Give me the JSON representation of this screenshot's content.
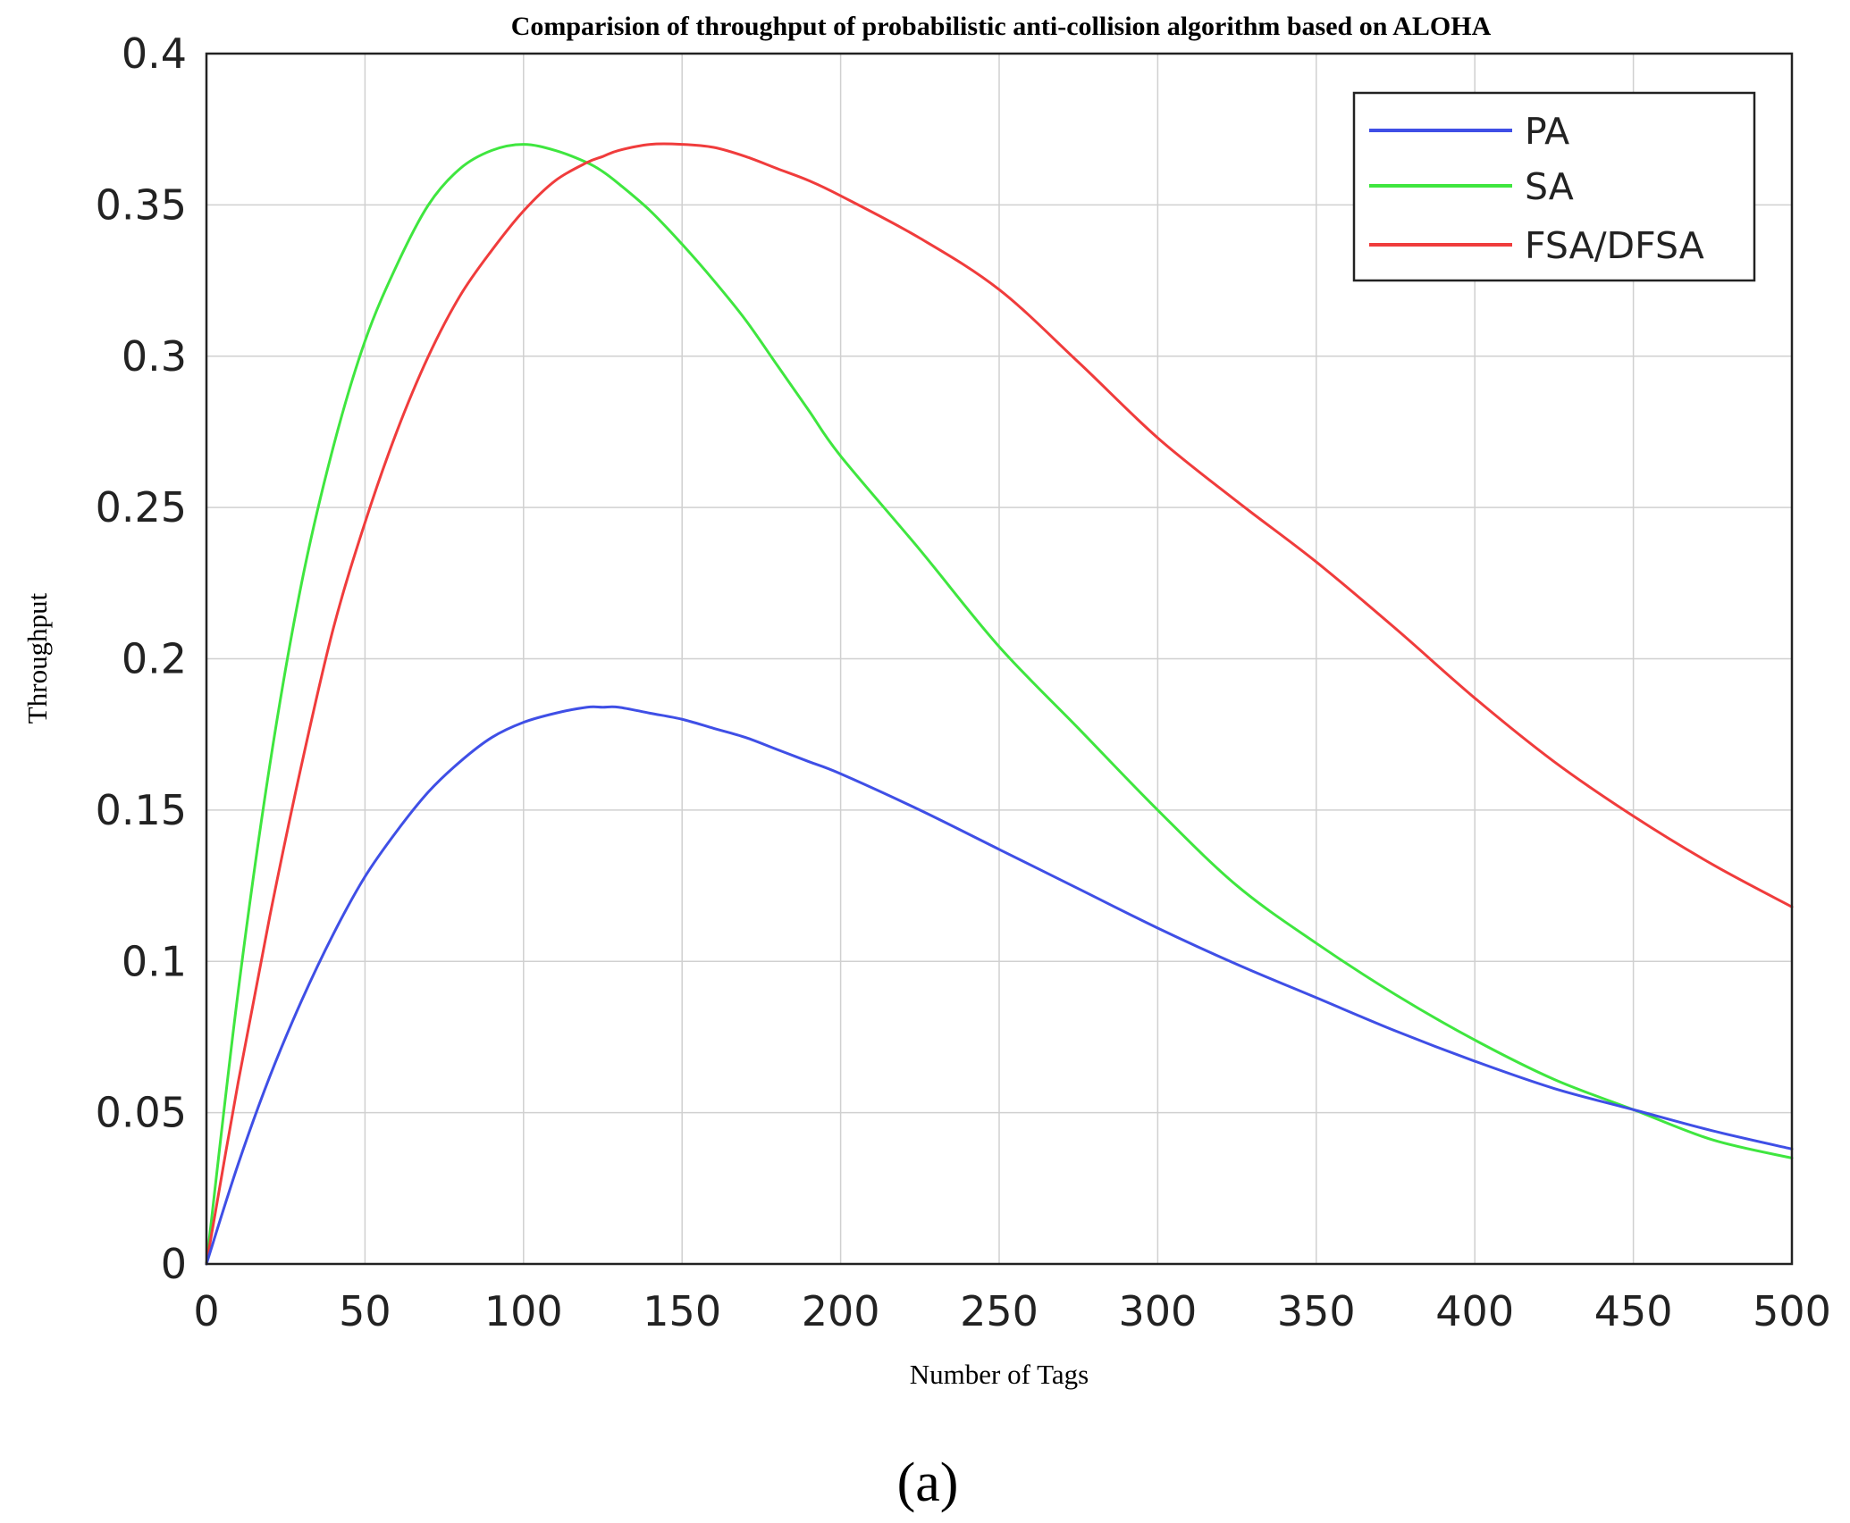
{
  "chart_data": {
    "type": "line",
    "title": "Comparision of throughput of probabilistic anti-collision algorithm based on ALOHA",
    "xlabel": "Number of Tags",
    "ylabel": "Throughput",
    "xlim": [
      0,
      500
    ],
    "ylim": [
      0,
      0.4
    ],
    "xticks": [
      "0",
      "50",
      "100",
      "150",
      "200",
      "250",
      "300",
      "350",
      "400",
      "450",
      "500"
    ],
    "yticks": [
      "0",
      "0.05",
      "0.1",
      "0.15",
      "0.2",
      "0.25",
      "0.3",
      "0.35",
      "0.4"
    ],
    "grid": true,
    "legend_position": "top-right",
    "x": [
      0,
      10,
      20,
      30,
      40,
      50,
      60,
      70,
      80,
      90,
      100,
      110,
      120,
      125,
      130,
      140,
      150,
      160,
      170,
      180,
      190,
      200,
      225,
      250,
      275,
      300,
      325,
      350,
      375,
      400,
      425,
      450,
      475,
      500
    ],
    "series": [
      {
        "name": "PA",
        "color": "#3f4fe6",
        "values": [
          0,
          0.033,
          0.062,
          0.087,
          0.109,
          0.128,
          0.143,
          0.156,
          0.166,
          0.174,
          0.179,
          0.182,
          0.184,
          0.184,
          0.184,
          0.182,
          0.18,
          0.177,
          0.174,
          0.17,
          0.166,
          0.162,
          0.15,
          0.137,
          0.124,
          0.111,
          0.099,
          0.088,
          0.077,
          0.067,
          0.058,
          0.051,
          0.044,
          0.038
        ]
      },
      {
        "name": "SA",
        "color": "#3fe63f",
        "values": [
          0,
          0.09,
          0.165,
          0.225,
          0.27,
          0.305,
          0.33,
          0.35,
          0.362,
          0.368,
          0.37,
          0.368,
          0.364,
          0.361,
          0.357,
          0.348,
          0.337,
          0.325,
          0.312,
          0.297,
          0.282,
          0.267,
          0.236,
          0.204,
          0.177,
          0.15,
          0.125,
          0.106,
          0.089,
          0.074,
          0.061,
          0.051,
          0.041,
          0.035
        ]
      },
      {
        "name": "FSA/DFSA",
        "color": "#f03c3c",
        "values": [
          0,
          0.06,
          0.115,
          0.165,
          0.21,
          0.245,
          0.275,
          0.3,
          0.32,
          0.335,
          0.348,
          0.358,
          0.364,
          0.366,
          0.368,
          0.37,
          0.37,
          0.369,
          0.366,
          0.362,
          0.358,
          0.353,
          0.339,
          0.322,
          0.298,
          0.273,
          0.252,
          0.232,
          0.21,
          0.187,
          0.166,
          0.148,
          0.132,
          0.118
        ]
      }
    ],
    "caption": "(a)"
  }
}
